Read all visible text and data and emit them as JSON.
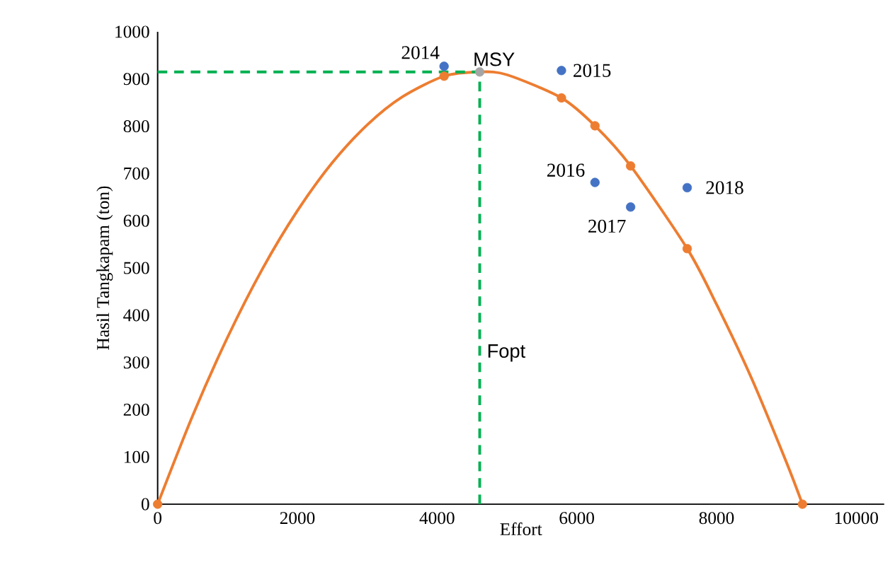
{
  "chart_data": {
    "type": "scatter",
    "xlabel": "Effort",
    "ylabel": "Hasil Tangkapam (ton)",
    "xlim": [
      0,
      10400
    ],
    "ylim": [
      0,
      1000
    ],
    "xticks": [
      0,
      2000,
      4000,
      6000,
      8000,
      10000
    ],
    "yticks": [
      0,
      100,
      200,
      300,
      400,
      500,
      600,
      700,
      800,
      900,
      1000
    ],
    "grid": false,
    "series": [
      {
        "type": "line",
        "color": "#ed7d31",
        "marker": "none",
        "line_style": "solid",
        "x": [
          0,
          500,
          1000,
          1500,
          2000,
          2500,
          3000,
          3500,
          4100,
          4610,
          5000,
          5780,
          6260,
          6770,
          7580,
          8000,
          8500,
          9000,
          9230
        ],
        "values": [
          0,
          187,
          353,
          498,
          621,
          723,
          803,
          862,
          906,
          915,
          909,
          860,
          801,
          716,
          541,
          423,
          267,
          89,
          0
        ]
      },
      {
        "type": "line",
        "color": "#00b050",
        "marker": "none",
        "line_style": "dashed",
        "x": [
          0,
          4610
        ],
        "values": [
          915,
          915
        ]
      },
      {
        "type": "line",
        "color": "#00b050",
        "marker": "none",
        "line_style": "dashed",
        "x": [
          4610,
          4610
        ],
        "values": [
          0,
          915
        ]
      },
      {
        "marker": "circle",
        "color": "#4472c4",
        "x": [
          4100,
          5780,
          6260,
          6770,
          7580
        ],
        "values": [
          927,
          918,
          681,
          629,
          670
        ]
      },
      {
        "marker": "circle",
        "color": "#ed7d31",
        "x": [
          0,
          4100,
          5780,
          6260,
          6770,
          7580,
          9230
        ],
        "values": [
          0,
          906,
          860,
          801,
          716,
          541,
          0
        ]
      },
      {
        "marker": "circle",
        "color": "#a5a5a5",
        "x": [
          4610
        ],
        "values": [
          915
        ]
      }
    ],
    "annotations": [
      {
        "text": "2014",
        "x": 4100,
        "y": 927
      },
      {
        "text": "MSY",
        "x": 4610,
        "y": 915
      },
      {
        "text": "2015",
        "x": 5780,
        "y": 918
      },
      {
        "text": "2016",
        "x": 6260,
        "y": 681
      },
      {
        "text": "2017",
        "x": 6770,
        "y": 629
      },
      {
        "text": "2018",
        "x": 7580,
        "y": 670
      },
      {
        "text": "Fopt",
        "x": 4610,
        "y": 320
      }
    ]
  }
}
